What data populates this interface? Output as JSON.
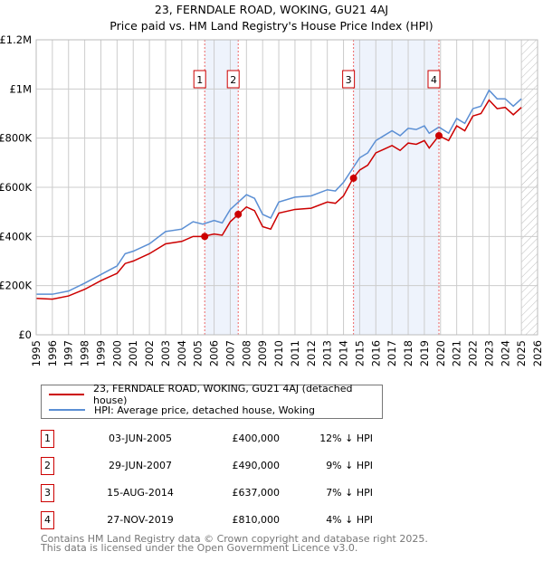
{
  "title": "23, FERNDALE ROAD, WOKING, GU21 4AJ",
  "subtitle": "Price paid vs. HM Land Registry's House Price Index (HPI)",
  "legend": {
    "property": "23, FERNDALE ROAD, WOKING, GU21 4AJ (detached house)",
    "hpi": "HPI: Average price, detached house, Woking"
  },
  "sales": [
    {
      "num": "1",
      "date": "03-JUN-2005",
      "price": "£400,000",
      "hpi": "12% ↓ HPI"
    },
    {
      "num": "2",
      "date": "29-JUN-2007",
      "price": "£490,000",
      "hpi": "9% ↓ HPI"
    },
    {
      "num": "3",
      "date": "15-AUG-2014",
      "price": "£637,000",
      "hpi": "7% ↓ HPI"
    },
    {
      "num": "4",
      "date": "27-NOV-2019",
      "price": "£810,000",
      "hpi": "4% ↓ HPI"
    }
  ],
  "footer": {
    "line1": "Contains HM Land Registry data © Crown copyright and database right 2025.",
    "line2": "This data is licensed under the Open Government Licence v3.0."
  },
  "colors": {
    "property": "#cc0000",
    "hpi": "#5b8fd4",
    "shade": "#eef3fc"
  },
  "chart_data": {
    "type": "line",
    "xlim": [
      1995,
      2026
    ],
    "ylim": [
      0,
      1200000
    ],
    "xticks": [
      "1995",
      "1996",
      "1997",
      "1998",
      "1999",
      "2000",
      "2001",
      "2002",
      "2003",
      "2004",
      "2005",
      "2006",
      "2007",
      "2008",
      "2009",
      "2010",
      "2011",
      "2012",
      "2013",
      "2014",
      "2015",
      "2016",
      "2017",
      "2018",
      "2019",
      "2020",
      "2021",
      "2022",
      "2023",
      "2024",
      "2025",
      "2026"
    ],
    "yticks": [
      {
        "v": 0,
        "label": "£0"
      },
      {
        "v": 200000,
        "label": "£200K"
      },
      {
        "v": 400000,
        "label": "£400K"
      },
      {
        "v": 600000,
        "label": "£600K"
      },
      {
        "v": 800000,
        "label": "£800K"
      },
      {
        "v": 1000000,
        "label": "£1M"
      },
      {
        "v": 1200000,
        "label": "£1.2M"
      }
    ],
    "x": [
      1995,
      1996,
      1997,
      1998,
      1999,
      2000,
      2000.5,
      2001,
      2002,
      2003,
      2004,
      2004.7,
      2005.3,
      2006,
      2006.5,
      2007,
      2007.5,
      2008,
      2008.5,
      2009,
      2009.5,
      2010,
      2011,
      2012,
      2013,
      2013.5,
      2014,
      2014.6,
      2015,
      2015.5,
      2016,
      2016.5,
      2017,
      2017.5,
      2018,
      2018.5,
      2019,
      2019.3,
      2019.9,
      2020.5,
      2021,
      2021.5,
      2022,
      2022.5,
      2023,
      2023.5,
      2024,
      2024.5,
      2025
    ],
    "series": [
      {
        "name": "HPI: Average price, detached house, Woking",
        "values": [
          165000,
          165000,
          178000,
          210000,
          245000,
          280000,
          330000,
          340000,
          370000,
          420000,
          430000,
          460000,
          450000,
          465000,
          455000,
          510000,
          540000,
          570000,
          555000,
          490000,
          475000,
          540000,
          560000,
          565000,
          590000,
          585000,
          620000,
          680000,
          720000,
          740000,
          790000,
          810000,
          830000,
          810000,
          840000,
          835000,
          850000,
          820000,
          845000,
          820000,
          880000,
          860000,
          920000,
          930000,
          995000,
          960000,
          960000,
          930000,
          960000
        ]
      },
      {
        "name": "23, FERNDALE ROAD, WOKING, GU21 4AJ (detached house)",
        "values": [
          148000,
          145000,
          158000,
          185000,
          220000,
          250000,
          290000,
          300000,
          330000,
          370000,
          380000,
          400000,
          400000,
          410000,
          405000,
          460000,
          490000,
          520000,
          505000,
          440000,
          430000,
          495000,
          510000,
          515000,
          540000,
          535000,
          565000,
          637000,
          670000,
          690000,
          740000,
          755000,
          770000,
          750000,
          780000,
          775000,
          790000,
          760000,
          810000,
          790000,
          850000,
          830000,
          890000,
          900000,
          955000,
          920000,
          925000,
          895000,
          925000
        ]
      }
    ],
    "sales": [
      {
        "label": "1",
        "x": 2005.42,
        "y": 400000
      },
      {
        "label": "2",
        "x": 2007.49,
        "y": 490000
      },
      {
        "label": "3",
        "x": 2014.62,
        "y": 637000
      },
      {
        "label": "4",
        "x": 2019.9,
        "y": 810000
      }
    ],
    "forecast_from": 2025.0
  }
}
